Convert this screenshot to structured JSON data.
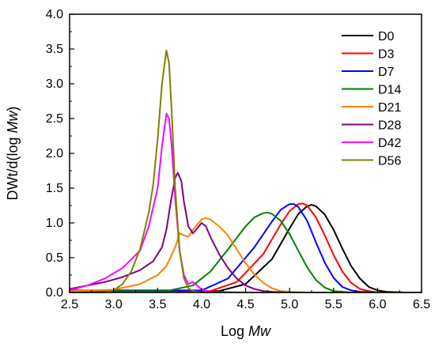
{
  "chart_data": {
    "type": "line",
    "xlabel": "Log Mw",
    "ylabel": "DWt/d(log Mw)",
    "xlim": [
      2.5,
      6.5
    ],
    "ylim": [
      0.0,
      4.0
    ],
    "xticks": [
      "2.5",
      "3.0",
      "3.5",
      "4.0",
      "4.5",
      "5.0",
      "5.5",
      "6.0",
      "6.5"
    ],
    "yticks": [
      "0.0",
      "0.5",
      "1.0",
      "1.5",
      "2.0",
      "2.5",
      "3.0",
      "3.5",
      "4.0"
    ],
    "legend_position": "top-right",
    "grid": false,
    "series": [
      {
        "name": "D0",
        "color": "#000000",
        "x": [
          2.5,
          4.2,
          4.5,
          4.8,
          5.0,
          5.1,
          5.2,
          5.25,
          5.3,
          5.4,
          5.5,
          5.6,
          5.7,
          5.8,
          5.9,
          6.0,
          6.1,
          6.3,
          6.5
        ],
        "y": [
          0.02,
          0.02,
          0.12,
          0.48,
          0.92,
          1.13,
          1.24,
          1.26,
          1.24,
          1.12,
          0.9,
          0.63,
          0.38,
          0.2,
          0.08,
          0.03,
          0.01,
          0.0,
          0.0
        ]
      },
      {
        "name": "D3",
        "color": "#ff0000",
        "x": [
          2.5,
          4.1,
          4.4,
          4.7,
          4.9,
          5.0,
          5.1,
          5.15,
          5.2,
          5.3,
          5.4,
          5.5,
          5.6,
          5.7,
          5.8,
          5.9,
          6.0,
          6.2,
          6.5
        ],
        "y": [
          0.02,
          0.02,
          0.15,
          0.55,
          0.98,
          1.17,
          1.27,
          1.28,
          1.25,
          1.08,
          0.82,
          0.54,
          0.3,
          0.14,
          0.05,
          0.02,
          0.0,
          0.0,
          0.0
        ]
      },
      {
        "name": "D7",
        "color": "#0000ff",
        "x": [
          2.5,
          4.0,
          4.3,
          4.6,
          4.8,
          4.9,
          5.0,
          5.05,
          5.1,
          5.2,
          5.3,
          5.4,
          5.5,
          5.6,
          5.7,
          5.8,
          6.0,
          6.5
        ],
        "y": [
          0.03,
          0.03,
          0.2,
          0.65,
          1.02,
          1.19,
          1.27,
          1.27,
          1.23,
          1.03,
          0.72,
          0.43,
          0.21,
          0.08,
          0.03,
          0.01,
          0.0,
          0.0
        ]
      },
      {
        "name": "D14",
        "color": "#008000",
        "x": [
          2.5,
          3.6,
          3.9,
          4.1,
          4.3,
          4.5,
          4.6,
          4.7,
          4.75,
          4.8,
          4.9,
          5.0,
          5.1,
          5.2,
          5.3,
          5.4,
          5.5,
          5.7,
          6.0,
          6.5
        ],
        "y": [
          0.02,
          0.02,
          0.1,
          0.3,
          0.62,
          0.95,
          1.08,
          1.14,
          1.15,
          1.13,
          1.03,
          0.84,
          0.6,
          0.36,
          0.18,
          0.07,
          0.02,
          0.0,
          0.0,
          0.0
        ]
      },
      {
        "name": "D21",
        "color": "#ff8000",
        "x": [
          2.5,
          3.0,
          3.3,
          3.5,
          3.6,
          3.7,
          3.75,
          3.8,
          3.85,
          3.9,
          4.0,
          4.05,
          4.1,
          4.2,
          4.3,
          4.4,
          4.5,
          4.6,
          4.7,
          4.8,
          4.9,
          5.0,
          5.2,
          5.5,
          6.5
        ],
        "y": [
          0.02,
          0.04,
          0.12,
          0.25,
          0.38,
          0.65,
          0.85,
          0.82,
          0.8,
          0.9,
          1.05,
          1.07,
          1.05,
          0.95,
          0.82,
          0.62,
          0.42,
          0.26,
          0.14,
          0.06,
          0.02,
          0.01,
          0.0,
          0.0,
          0.0
        ]
      },
      {
        "name": "D28",
        "color": "#800080",
        "x": [
          2.5,
          2.7,
          2.9,
          3.1,
          3.3,
          3.45,
          3.55,
          3.6,
          3.65,
          3.7,
          3.73,
          3.77,
          3.8,
          3.85,
          3.9,
          3.95,
          4.0,
          4.05,
          4.1,
          4.2,
          4.3,
          4.4,
          4.5,
          4.6,
          4.7,
          4.8,
          5.0,
          5.5,
          6.5
        ],
        "y": [
          0.05,
          0.1,
          0.15,
          0.22,
          0.32,
          0.45,
          0.65,
          0.9,
          1.3,
          1.65,
          1.72,
          1.6,
          1.3,
          0.95,
          0.85,
          0.92,
          1.0,
          0.95,
          0.8,
          0.55,
          0.35,
          0.2,
          0.1,
          0.05,
          0.02,
          0.01,
          0.0,
          0.0,
          0.0
        ]
      },
      {
        "name": "D42",
        "color": "#ff00ff",
        "x": [
          2.5,
          2.7,
          2.9,
          3.1,
          3.3,
          3.4,
          3.5,
          3.55,
          3.6,
          3.63,
          3.66,
          3.7,
          3.75,
          3.8,
          3.85,
          3.9,
          3.95,
          4.0,
          4.1,
          4.5,
          6.5
        ],
        "y": [
          0.03,
          0.1,
          0.2,
          0.35,
          0.6,
          0.95,
          1.5,
          2.1,
          2.57,
          2.5,
          2.1,
          1.35,
          0.6,
          0.25,
          0.12,
          0.15,
          0.1,
          0.04,
          0.01,
          0.0,
          0.0
        ]
      },
      {
        "name": "D56",
        "color": "#808000",
        "x": [
          2.5,
          2.9,
          3.0,
          3.1,
          3.2,
          3.3,
          3.4,
          3.45,
          3.5,
          3.55,
          3.6,
          3.63,
          3.66,
          3.7,
          3.75,
          3.8,
          3.85,
          3.9,
          4.0,
          4.5,
          6.5
        ],
        "y": [
          0.0,
          0.0,
          0.03,
          0.12,
          0.3,
          0.62,
          1.15,
          1.55,
          2.2,
          3.0,
          3.48,
          3.3,
          2.6,
          1.5,
          0.6,
          0.2,
          0.06,
          0.02,
          0.0,
          0.0,
          0.0
        ]
      }
    ]
  }
}
